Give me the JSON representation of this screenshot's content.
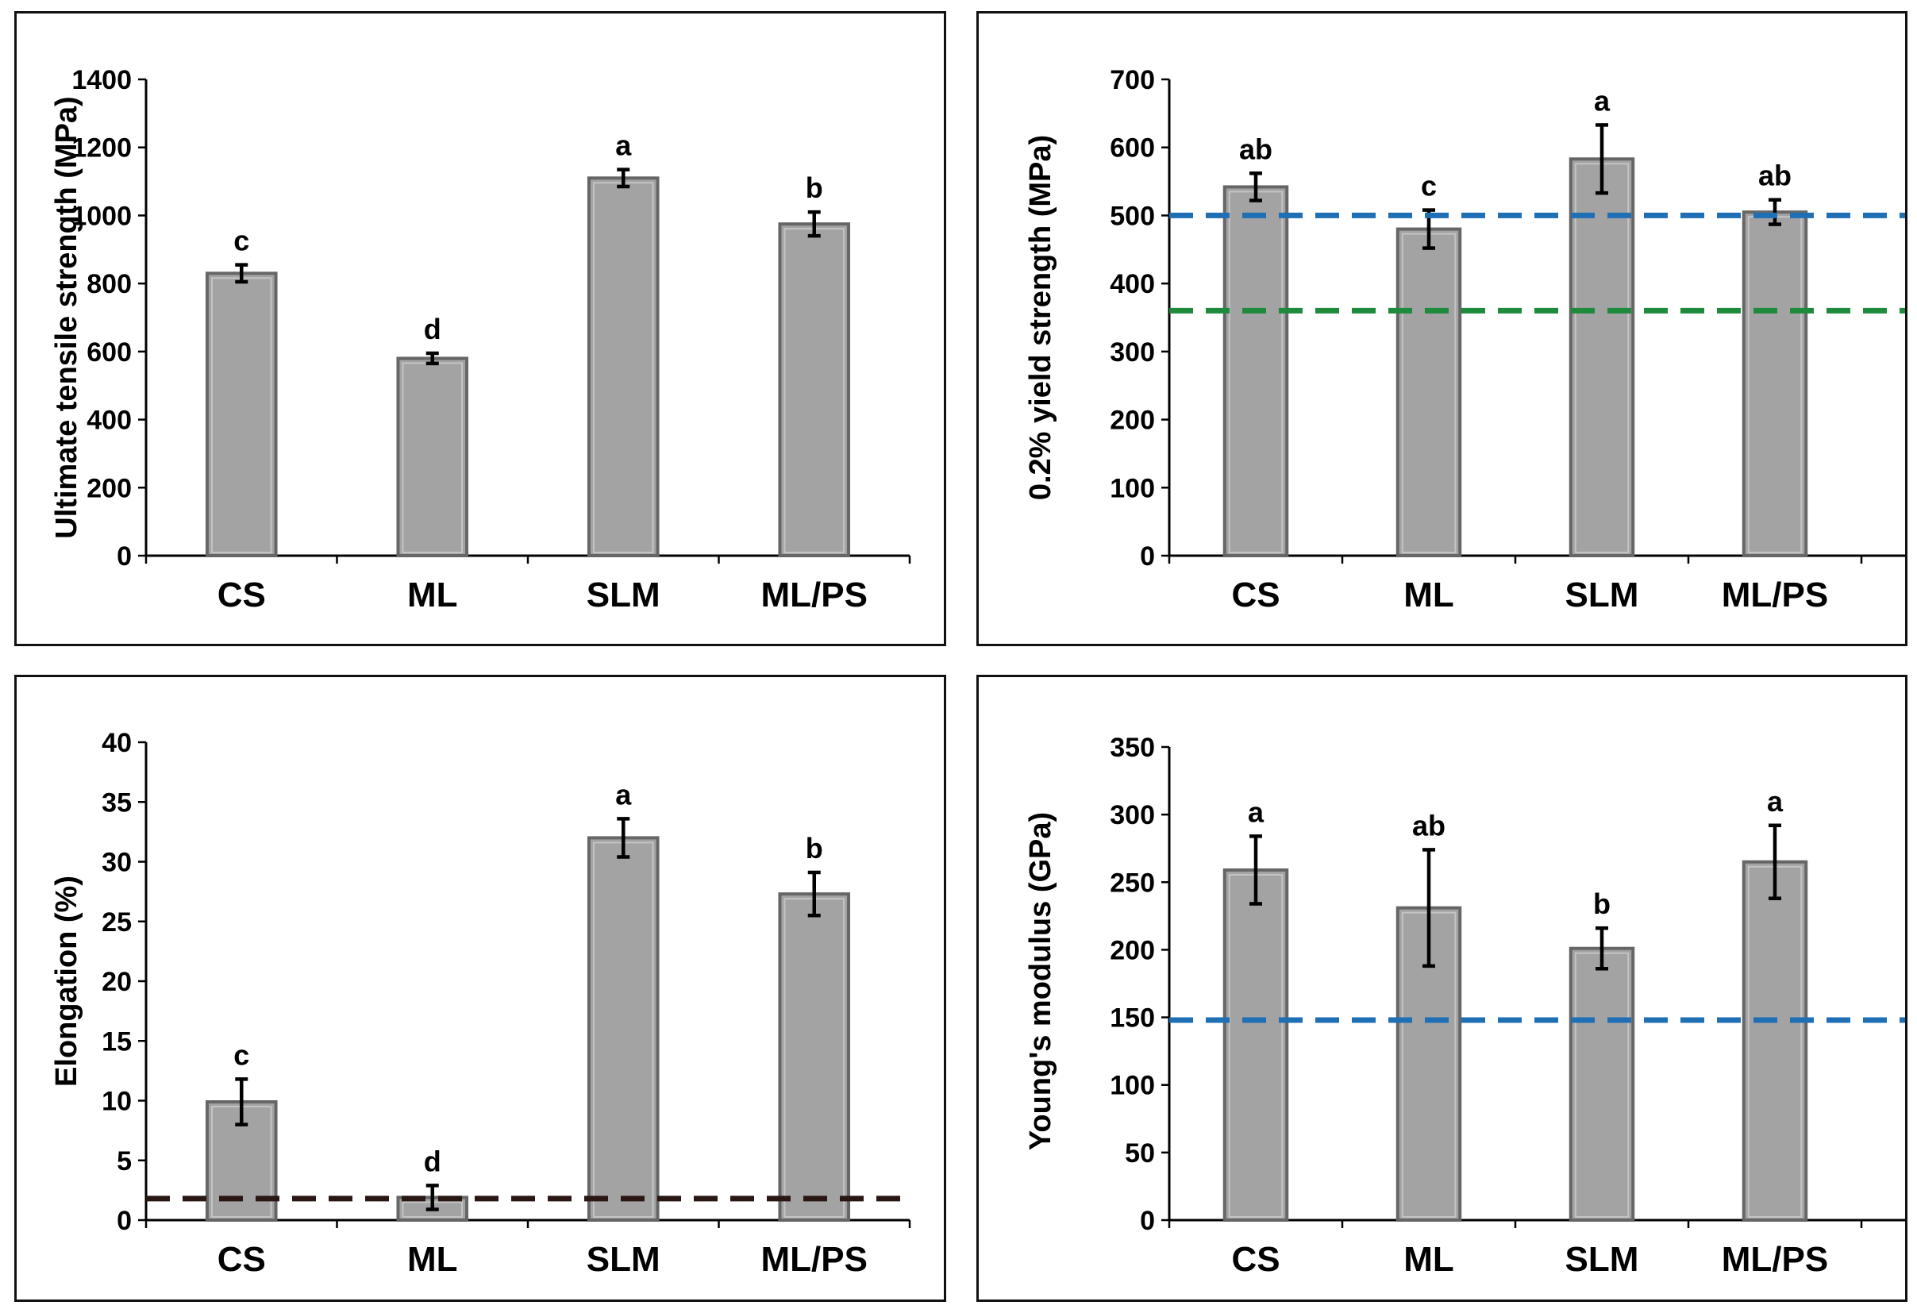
{
  "chart_data": [
    {
      "type": "bar",
      "categories": [
        "CS",
        "ML",
        "SLM",
        "ML/PS"
      ],
      "values": [
        830,
        580,
        1110,
        975
      ],
      "errors": [
        25,
        15,
        25,
        35
      ],
      "significance": [
        "c",
        "d",
        "a",
        "b"
      ],
      "ylabel": "Ultimate tensile strength (MPa)",
      "xlabel": "",
      "ylim": [
        0,
        1400
      ],
      "yticks": [
        0,
        200,
        400,
        600,
        800,
        1000,
        1200,
        1400
      ],
      "reference_lines": []
    },
    {
      "type": "bar",
      "categories": [
        "CS",
        "ML",
        "SLM",
        "ML/PS"
      ],
      "values": [
        542,
        480,
        583,
        505
      ],
      "errors": [
        20,
        28,
        50,
        18
      ],
      "significance": [
        "ab",
        "c",
        "a",
        "ab"
      ],
      "ylabel": "0.2% yield strength (MPa)",
      "xlabel": "",
      "ylim": [
        0,
        700
      ],
      "yticks": [
        0,
        100,
        200,
        300,
        400,
        500,
        600,
        700
      ],
      "reference_lines": [
        {
          "value": 500,
          "color": "#1f6fb5"
        },
        {
          "value": 360,
          "color": "#1e8a3c"
        }
      ]
    },
    {
      "type": "bar",
      "categories": [
        "CS",
        "ML",
        "SLM",
        "ML/PS"
      ],
      "values": [
        9.9,
        1.9,
        32,
        27.3
      ],
      "errors": [
        1.9,
        1,
        1.6,
        1.8
      ],
      "significance": [
        "c",
        "d",
        "a",
        "b"
      ],
      "ylabel": "Elongation (%)",
      "xlabel": "",
      "ylim": [
        0,
        40
      ],
      "yticks": [
        0,
        5,
        10,
        15,
        20,
        25,
        30,
        35,
        40
      ],
      "reference_lines": [
        {
          "value": 1.8,
          "color": "#2a1612"
        }
      ]
    },
    {
      "type": "bar",
      "categories": [
        "CS",
        "ML",
        "SLM",
        "ML/PS"
      ],
      "values": [
        259,
        231,
        201,
        265
      ],
      "errors": [
        25,
        43,
        15,
        27
      ],
      "significance": [
        "a",
        "ab",
        "b",
        "a"
      ],
      "ylabel": "Young's modulus (GPa)",
      "xlabel": "",
      "ylim": [
        0,
        350
      ],
      "yticks": [
        0,
        50,
        100,
        150,
        200,
        250,
        300,
        350
      ],
      "reference_lines": [
        {
          "value": 148,
          "color": "#1f6fb5"
        }
      ]
    }
  ]
}
